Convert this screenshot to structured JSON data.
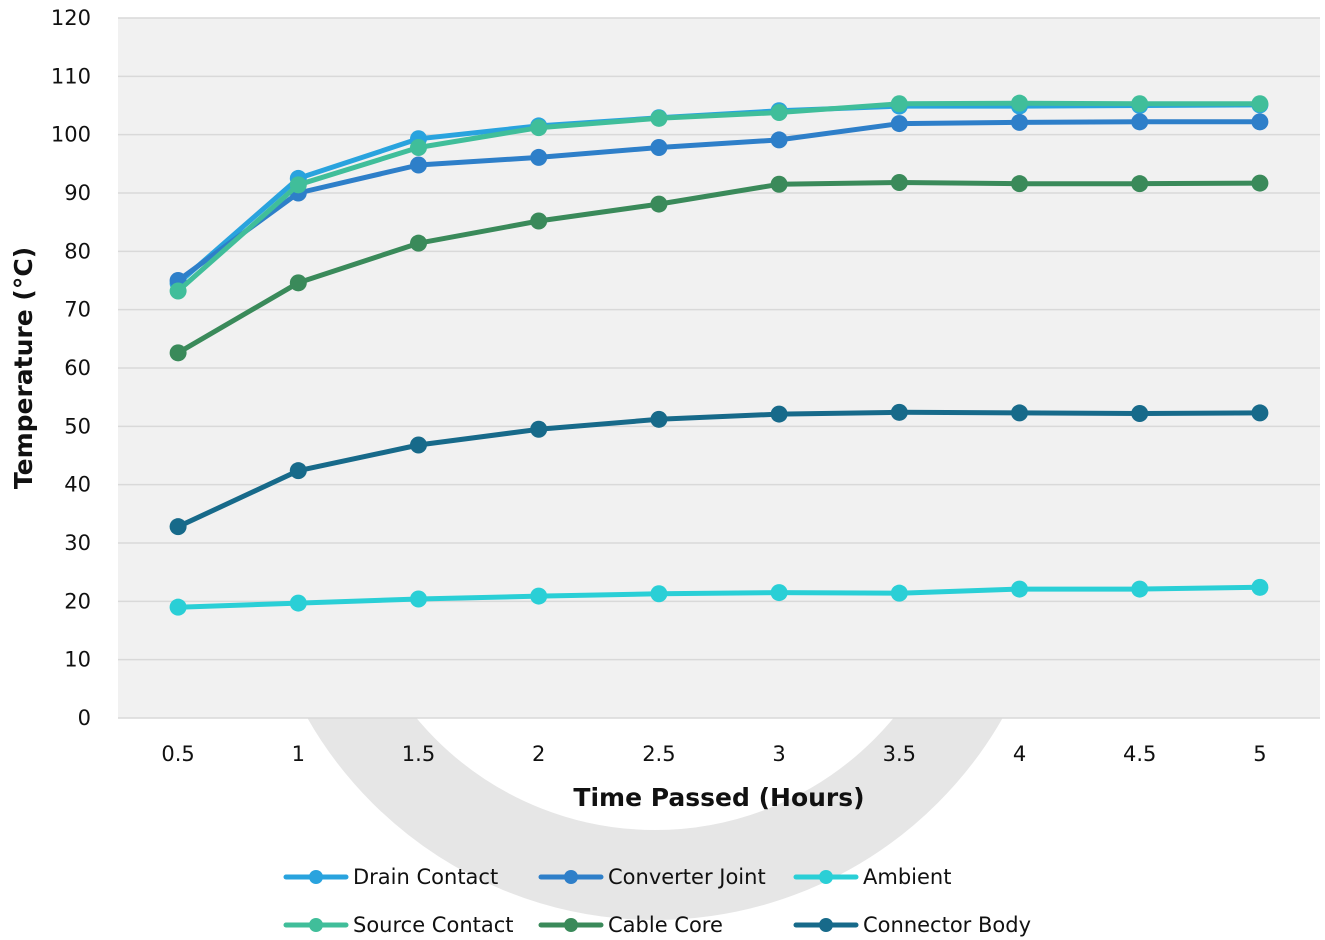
{
  "chart_data": {
    "type": "line",
    "title": "",
    "xlabel": "Time Passed (Hours)",
    "ylabel": "Temperature (°C)",
    "x": [
      "0.5",
      "1",
      "1.5",
      "2",
      "2.5",
      "3",
      "3.5",
      "4",
      "4.5",
      "5"
    ],
    "ylim": [
      0,
      120
    ],
    "yticks": [
      0,
      10,
      20,
      30,
      40,
      50,
      60,
      70,
      80,
      90,
      100,
      110,
      120
    ],
    "grid": true,
    "legend_position": "bottom",
    "series": [
      {
        "name": "Drain Contact",
        "color": "#29A3DE",
        "values": [
          74.5,
          92.5,
          99.3,
          101.5,
          102.9,
          104.1,
          104.9,
          104.9,
          105.0,
          105.1
        ]
      },
      {
        "name": "Converter Joint",
        "color": "#2E7FC9",
        "values": [
          75.0,
          90.0,
          94.8,
          96.1,
          97.8,
          99.1,
          101.9,
          102.1,
          102.2,
          102.2
        ]
      },
      {
        "name": "Ambient",
        "color": "#2ACFD6",
        "values": [
          19.0,
          19.7,
          20.4,
          20.9,
          21.3,
          21.5,
          21.4,
          22.1,
          22.1,
          22.4
        ]
      },
      {
        "name": "Source Contact",
        "color": "#40BE9A",
        "values": [
          73.2,
          91.4,
          97.8,
          101.2,
          102.8,
          103.8,
          105.3,
          105.4,
          105.3,
          105.3
        ]
      },
      {
        "name": "Cable Core",
        "color": "#3A8A5A",
        "values": [
          62.6,
          74.6,
          81.4,
          85.2,
          88.1,
          91.5,
          91.8,
          91.6,
          91.6,
          91.7
        ]
      },
      {
        "name": "Connector Body",
        "color": "#176A8A",
        "values": [
          32.8,
          42.4,
          46.8,
          49.5,
          51.2,
          52.1,
          52.4,
          52.3,
          52.2,
          52.3
        ]
      }
    ]
  }
}
